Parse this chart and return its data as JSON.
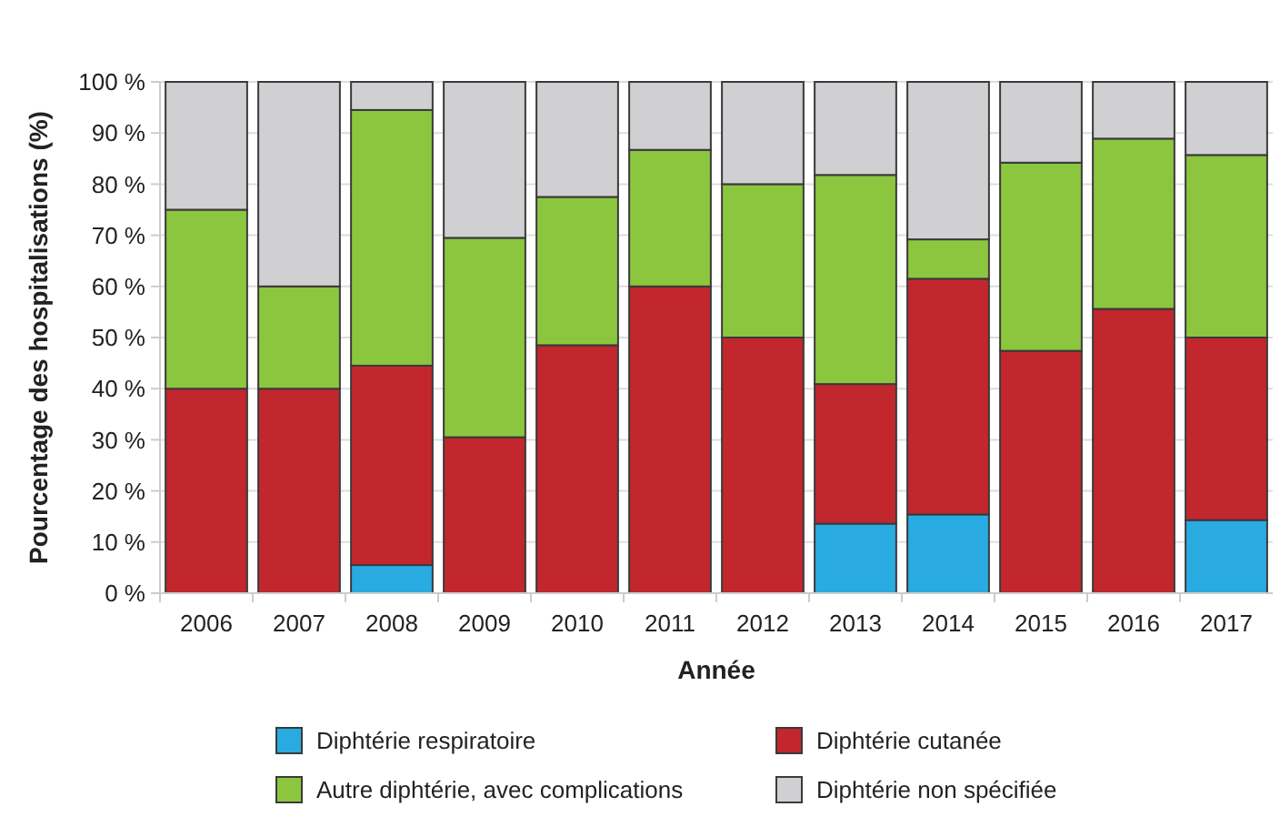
{
  "chart_data": {
    "type": "bar",
    "stacked": true,
    "xlabel": "Année",
    "ylabel": "Pourcentage des hospitalisations (%)",
    "categories": [
      "2006",
      "2007",
      "2008",
      "2009",
      "2010",
      "2011",
      "2012",
      "2013",
      "2014",
      "2015",
      "2016",
      "2017"
    ],
    "series": [
      {
        "name": "Diphtérie respiratoire",
        "color": "#29abe2",
        "values": [
          0,
          0,
          5.5,
          0,
          0,
          0,
          0,
          13.6,
          15.4,
          0,
          0,
          14.3
        ]
      },
      {
        "name": "Diphtérie cutanée",
        "color": "#c1272d",
        "values": [
          40,
          40,
          39,
          30.5,
          48.5,
          60,
          50,
          27.3,
          46.1,
          47.4,
          55.6,
          35.7
        ]
      },
      {
        "name": "Autre diphtérie, avec complications",
        "color": "#8cc63f",
        "values": [
          35,
          20,
          50,
          39,
          29,
          26.7,
          30,
          40.9,
          7.7,
          36.8,
          33.3,
          35.7
        ]
      },
      {
        "name": "Diphtérie non spécifiée",
        "color": "#d0cfd1",
        "values": [
          25,
          40,
          5.5,
          30.5,
          22.5,
          13.3,
          20,
          18.2,
          30.8,
          15.8,
          11.1,
          14.3
        ]
      }
    ],
    "ylim": [
      0,
      100
    ],
    "yticks": [
      {
        "value": 0,
        "label": "0 %"
      },
      {
        "value": 10,
        "label": "10 %"
      },
      {
        "value": 20,
        "label": "20 %"
      },
      {
        "value": 30,
        "label": "30 %"
      },
      {
        "value": 40,
        "label": "40 %"
      },
      {
        "value": 50,
        "label": "50 %"
      },
      {
        "value": 60,
        "label": "60 %"
      },
      {
        "value": 70,
        "label": "70 %"
      },
      {
        "value": 80,
        "label": "80 %"
      },
      {
        "value": 90,
        "label": "90 %"
      },
      {
        "value": 100,
        "label": "100 %"
      }
    ],
    "grid": "y",
    "legend": "bottom"
  }
}
